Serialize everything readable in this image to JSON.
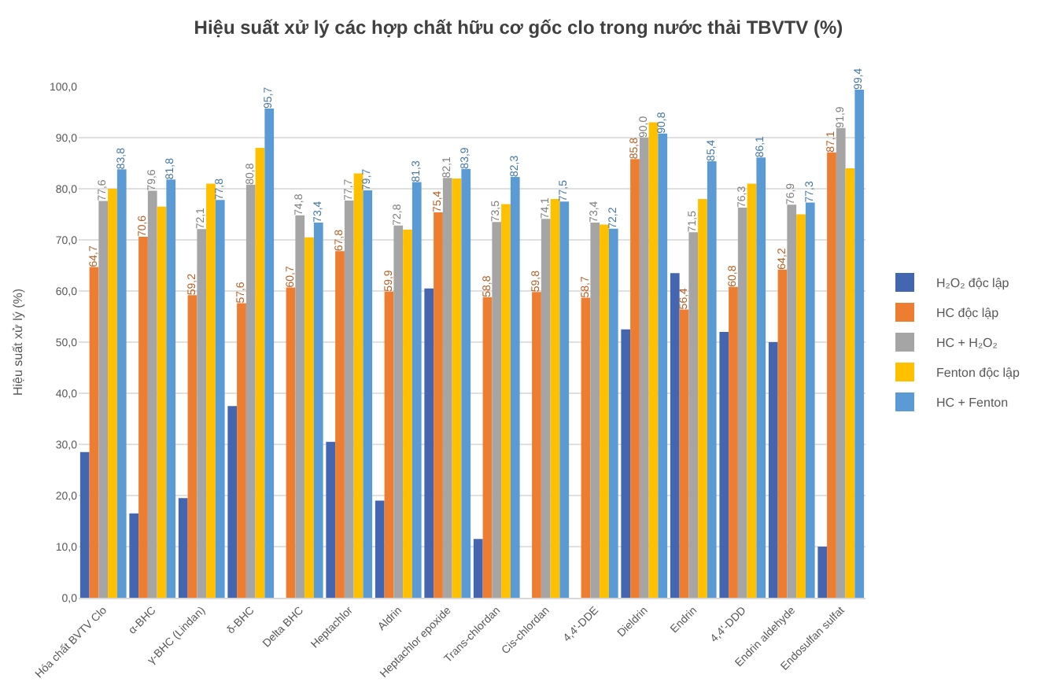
{
  "chart_data": {
    "type": "bar",
    "title": "Hiệu suất xử lý các hợp chất hữu cơ gốc clo trong nước thải TBVTV (%)",
    "ylabel": "Hiệu suất xử lý (%)",
    "categories": [
      "Hóa chất BVTV Clo",
      "α-BHC",
      "γ-BHC (Lindan)",
      "δ-BHC",
      "Delta BHC",
      "Heptachlor",
      "Aldrin",
      "Heptachlor epoxide",
      "Trans-chlordan",
      "Cis-chlordan",
      "4,4'-DDE",
      "Dieldrin",
      "Endrin",
      "4,4'-DDD",
      "Endrin aldehyde",
      "Endosulfan sulfat"
    ],
    "series": [
      {
        "name": "H₂O₂ độc lập",
        "color": "#4466b0",
        "values": [
          28.5,
          16.5,
          19.5,
          37.5,
          null,
          30.5,
          19,
          60.5,
          11.5,
          null,
          null,
          52.5,
          63.5,
          52,
          50,
          10
        ]
      },
      {
        "name": "HC độc lập",
        "color": "#ed7d31",
        "values": [
          64.7,
          70.6,
          59.2,
          57.6,
          60.7,
          67.8,
          59.9,
          75.4,
          58.8,
          59.8,
          58.7,
          85.8,
          56.4,
          60.8,
          64.2,
          87.1
        ],
        "value_labels": [
          "64,7",
          "70,6",
          "59,2",
          "57,6",
          "60,7",
          "67,8",
          "59,9",
          "75,4",
          "58,8",
          "59,8",
          "58,7",
          "85,8",
          "56,4",
          "60,8",
          "64,2",
          "87,1"
        ]
      },
      {
        "name": "HC + H₂O₂",
        "color": "#a5a5a5",
        "values": [
          77.6,
          79.6,
          72.1,
          80.8,
          74.8,
          77.7,
          72.8,
          82.1,
          73.5,
          74.1,
          73.4,
          90.0,
          71.5,
          76.3,
          76.9,
          91.9
        ],
        "value_labels": [
          "77,6",
          "79,6",
          "72,1",
          "80,8",
          "74,8",
          "77,7",
          "72,8",
          "82,1",
          "73,5",
          "74,1",
          "73,4",
          "90,0",
          "71,5",
          "76,3",
          "76,9",
          "91,9"
        ]
      },
      {
        "name": "Fenton độc lập",
        "color": "#ffc000",
        "values": [
          80,
          76.5,
          81,
          88,
          70.5,
          83,
          72,
          82,
          77,
          78,
          73,
          93,
          78,
          81,
          75,
          84
        ]
      },
      {
        "name": "HC + Fenton",
        "color": "#5b9bd5",
        "values": [
          83.8,
          81.8,
          77.8,
          95.7,
          73.4,
          79.7,
          81.3,
          83.9,
          82.3,
          77.5,
          72.2,
          90.8,
          85.4,
          86.1,
          77.3,
          99.4
        ],
        "value_labels": [
          "83,8",
          "81,8",
          "77,8",
          "95,7",
          "73,4",
          "79,7",
          "81,3",
          "83,9",
          "82,3",
          "77,5",
          "72,2",
          "90,8",
          "85,4",
          "86,1",
          "77,3",
          "99,4"
        ]
      }
    ],
    "ylim": [
      0,
      100
    ],
    "yticks": [
      {
        "value": 0,
        "label": "0,0"
      },
      {
        "value": 10,
        "label": "10,0"
      },
      {
        "value": 20,
        "label": "20,0"
      },
      {
        "value": 30,
        "label": "30,0"
      },
      {
        "value": 40,
        "label": "40,0"
      },
      {
        "value": 50,
        "label": "50,0"
      },
      {
        "value": 60,
        "label": "60,0"
      },
      {
        "value": 70,
        "label": "70,0"
      },
      {
        "value": 80,
        "label": "80,0"
      },
      {
        "value": 90,
        "label": "90,0"
      },
      {
        "value": 100,
        "label": "100,0"
      }
    ],
    "grid": "y",
    "legend": "right"
  }
}
